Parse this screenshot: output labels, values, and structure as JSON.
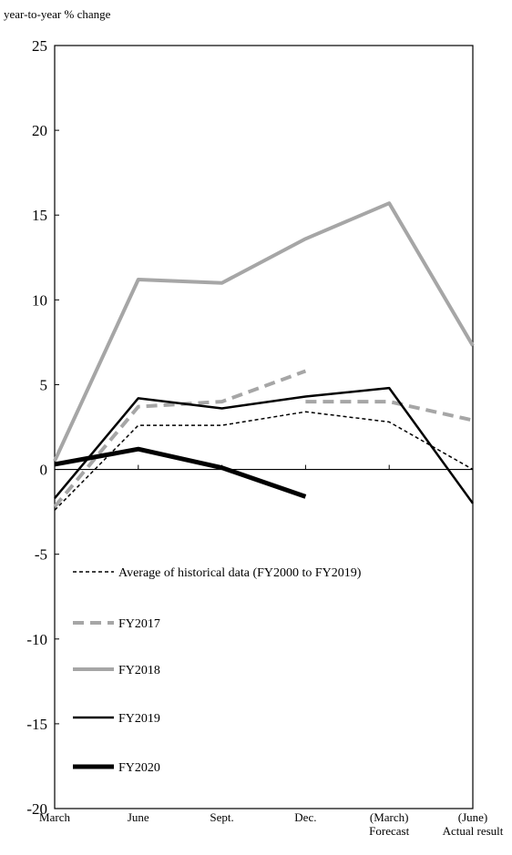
{
  "chart_data": {
    "type": "line",
    "y_label": "year-to-year % change",
    "categories": [
      "March",
      "June",
      "Sept.",
      "Dec.",
      [
        "(March)",
        "Forecast"
      ],
      [
        "(June)",
        "Actual result"
      ]
    ],
    "ylim": [
      -20,
      25
    ],
    "yticks": [
      -20,
      -15,
      -10,
      -5,
      0,
      5,
      10,
      15,
      20,
      25
    ],
    "series": [
      {
        "name": "Average of historical data (FY2000 to FY2019)",
        "color": "#000000",
        "width": 1.5,
        "dash": "4 3",
        "values": [
          -2.4,
          2.6,
          2.6,
          3.4,
          2.8,
          0
        ]
      },
      {
        "name": "FY2017",
        "color": "#a6a6a6",
        "width": 4,
        "dash": "12 7",
        "values": [
          -2.2,
          3.7,
          4.0,
          5.8,
          null,
          null
        ],
        "forecast_values": [
          null,
          null,
          null,
          4.0,
          4.0,
          2.9
        ]
      },
      {
        "name": "FY2018",
        "color": "#a6a6a6",
        "width": 4,
        "dash": "",
        "values": [
          0.5,
          11.2,
          11.0,
          13.6,
          15.7,
          7.3
        ]
      },
      {
        "name": "FY2019",
        "color": "#000000",
        "width": 2.5,
        "dash": "",
        "values": [
          -1.7,
          4.2,
          3.6,
          4.3,
          4.8,
          -2.0
        ]
      },
      {
        "name": "FY2020",
        "color": "#000000",
        "width": 5,
        "dash": "",
        "values": [
          0.3,
          1.2,
          0.1,
          -1.6,
          null,
          null
        ]
      }
    ]
  }
}
